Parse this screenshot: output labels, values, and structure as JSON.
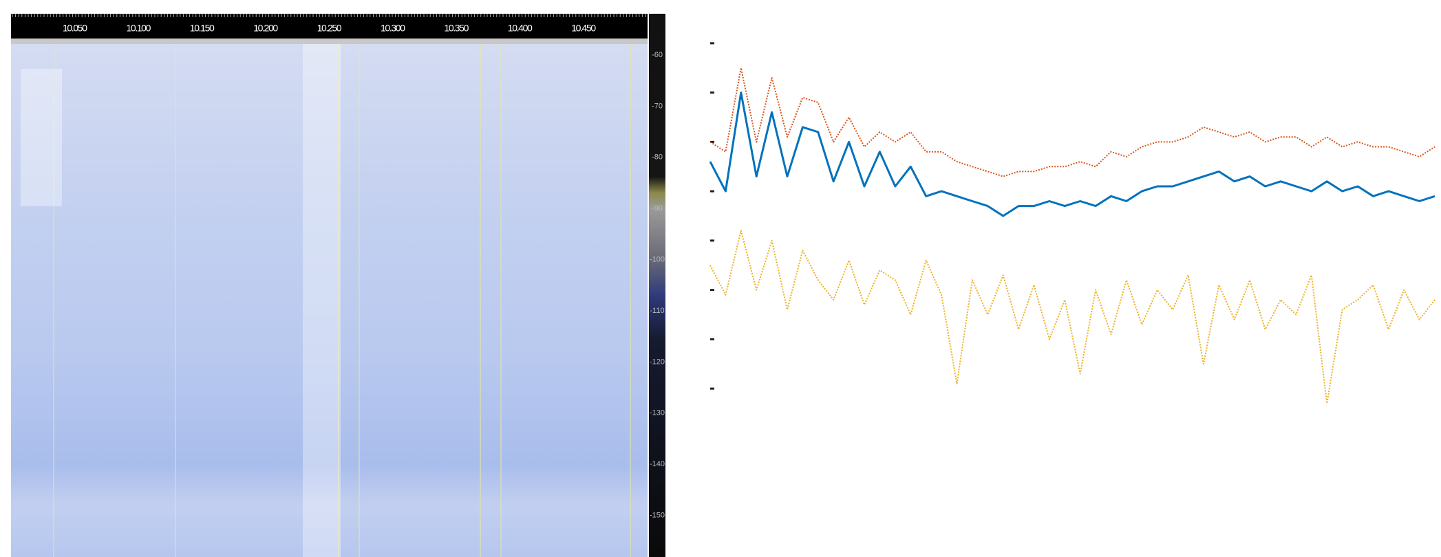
{
  "waterfall": {
    "freq_labels": [
      "10.050",
      "10.100",
      "10.150",
      "10.200",
      "10.250",
      "10.300",
      "10.350",
      "10.400",
      "10.450"
    ],
    "db_labels": [
      "-60",
      "-70",
      "-80",
      "-90",
      "-100",
      "-110",
      "-120",
      "-130",
      "-140",
      "-150"
    ]
  },
  "chart_data": {
    "type": "line",
    "ylim": [
      -0.5,
      7.5
    ],
    "yticks": [
      0,
      1,
      2,
      3,
      4,
      5,
      6,
      7
    ],
    "series": [
      {
        "color": "#edb120",
        "line_style": "dotted",
        "values": [
          2.5,
          1.9,
          3.2,
          2.0,
          3.0,
          1.6,
          2.8,
          2.2,
          1.8,
          2.6,
          1.7,
          2.4,
          2.2,
          1.5,
          2.6,
          1.9,
          0.1,
          2.2,
          1.5,
          2.3,
          1.2,
          2.1,
          1.0,
          1.8,
          0.3,
          2.0,
          1.1,
          2.2,
          1.3,
          2.0,
          1.6,
          2.3,
          0.5,
          2.1,
          1.4,
          2.2,
          1.2,
          1.8,
          1.5,
          2.3,
          -0.3,
          1.6,
          1.8,
          2.1,
          1.2,
          2.0,
          1.4,
          1.8
        ]
      },
      {
        "color": "#d95319",
        "line_style": "dotted",
        "values": [
          5.0,
          4.8,
          6.5,
          5.0,
          6.3,
          5.1,
          5.9,
          5.8,
          5.0,
          5.5,
          4.9,
          5.2,
          5.0,
          5.2,
          4.8,
          4.8,
          4.6,
          4.5,
          4.4,
          4.3,
          4.4,
          4.4,
          4.5,
          4.5,
          4.6,
          4.5,
          4.8,
          4.7,
          4.9,
          5.0,
          5.0,
          5.1,
          5.3,
          5.2,
          5.1,
          5.2,
          5.0,
          5.1,
          5.1,
          4.9,
          5.1,
          4.9,
          5.0,
          4.9,
          4.9,
          4.8,
          4.7,
          4.9
        ]
      },
      {
        "color": "#0072bd",
        "line_style": "solid",
        "values": [
          4.6,
          4.0,
          6.0,
          4.3,
          5.6,
          4.3,
          5.3,
          5.2,
          4.2,
          5.0,
          4.1,
          4.8,
          4.1,
          4.5,
          3.9,
          4.0,
          3.9,
          3.8,
          3.7,
          3.5,
          3.7,
          3.7,
          3.8,
          3.7,
          3.8,
          3.7,
          3.9,
          3.8,
          4.0,
          4.1,
          4.1,
          4.2,
          4.3,
          4.4,
          4.2,
          4.3,
          4.1,
          4.2,
          4.1,
          4.0,
          4.2,
          4.0,
          4.1,
          3.9,
          4.0,
          3.9,
          3.8,
          3.9
        ]
      }
    ]
  }
}
